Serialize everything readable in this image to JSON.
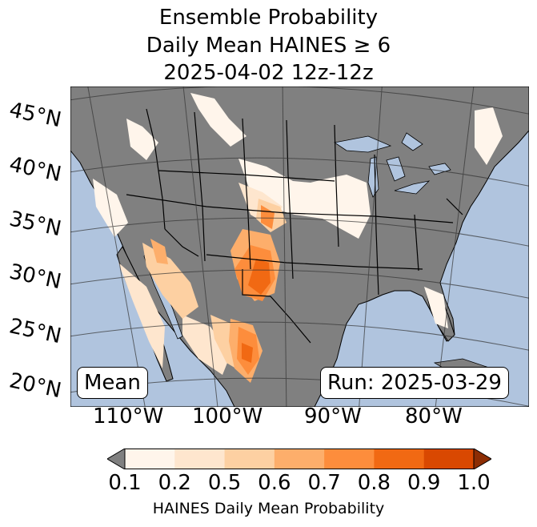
{
  "title": {
    "line1": "Ensemble Probability",
    "line2": "Daily Mean HAINES ≥ 6",
    "line3": "2025-04-02 12z-12z"
  },
  "map": {
    "ocean_color": "#b0c4de",
    "land_color": "#808080",
    "lat_labels": [
      "45°N",
      "40°N",
      "35°N",
      "30°N",
      "25°N",
      "20°N"
    ],
    "lon_labels": [
      "110°W",
      "100°W",
      "90°W",
      "80°W"
    ],
    "badge_left": "Mean",
    "badge_right": "Run: 2025-03-29"
  },
  "colorbar": {
    "ticks": [
      "0.1",
      "0.2",
      "0.5",
      "0.6",
      "0.7",
      "0.8",
      "0.9",
      "1.0"
    ],
    "colors": [
      "#fff5eb",
      "#fee6ce",
      "#fdd0a2",
      "#fdae6b",
      "#fd8d3c",
      "#f16913",
      "#d94801",
      "#8c2d04"
    ],
    "under_color": "#808080",
    "label": "HAINES Daily Mean Probability"
  }
}
